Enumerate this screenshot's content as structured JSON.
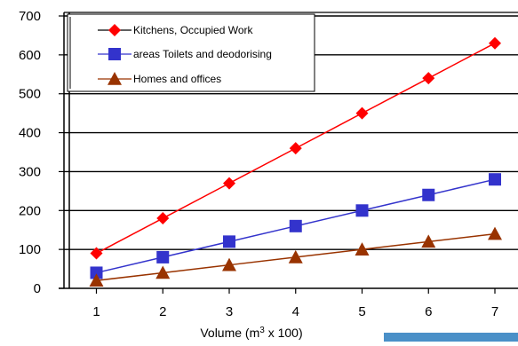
{
  "chart_data": {
    "type": "line",
    "x": [
      1,
      2,
      3,
      4,
      5,
      6,
      7
    ],
    "series": [
      {
        "name": "Kitchens, Occupied Work",
        "values": [
          90,
          180,
          270,
          360,
          450,
          540,
          630
        ],
        "color": "#ff0000",
        "marker": "diamond"
      },
      {
        "name": "areas Toilets and deodorising",
        "values": [
          40,
          80,
          120,
          160,
          200,
          240,
          280
        ],
        "color": "#3333cc",
        "marker": "square"
      },
      {
        "name": "Homes and offices",
        "values": [
          20,
          40,
          60,
          80,
          100,
          120,
          140
        ],
        "color": "#993300",
        "marker": "triangle"
      }
    ],
    "xlabel": {
      "text": "Volume (m",
      "sup": "3",
      "tail": " x 100)"
    },
    "ylabel": "",
    "ylim": [
      0,
      700
    ],
    "yticks": [
      0,
      100,
      200,
      300,
      400,
      500,
      600,
      700
    ],
    "xticks": [
      "1",
      "2",
      "3",
      "4",
      "5",
      "6",
      "7"
    ],
    "grid": true,
    "legend_position": "top-left"
  }
}
